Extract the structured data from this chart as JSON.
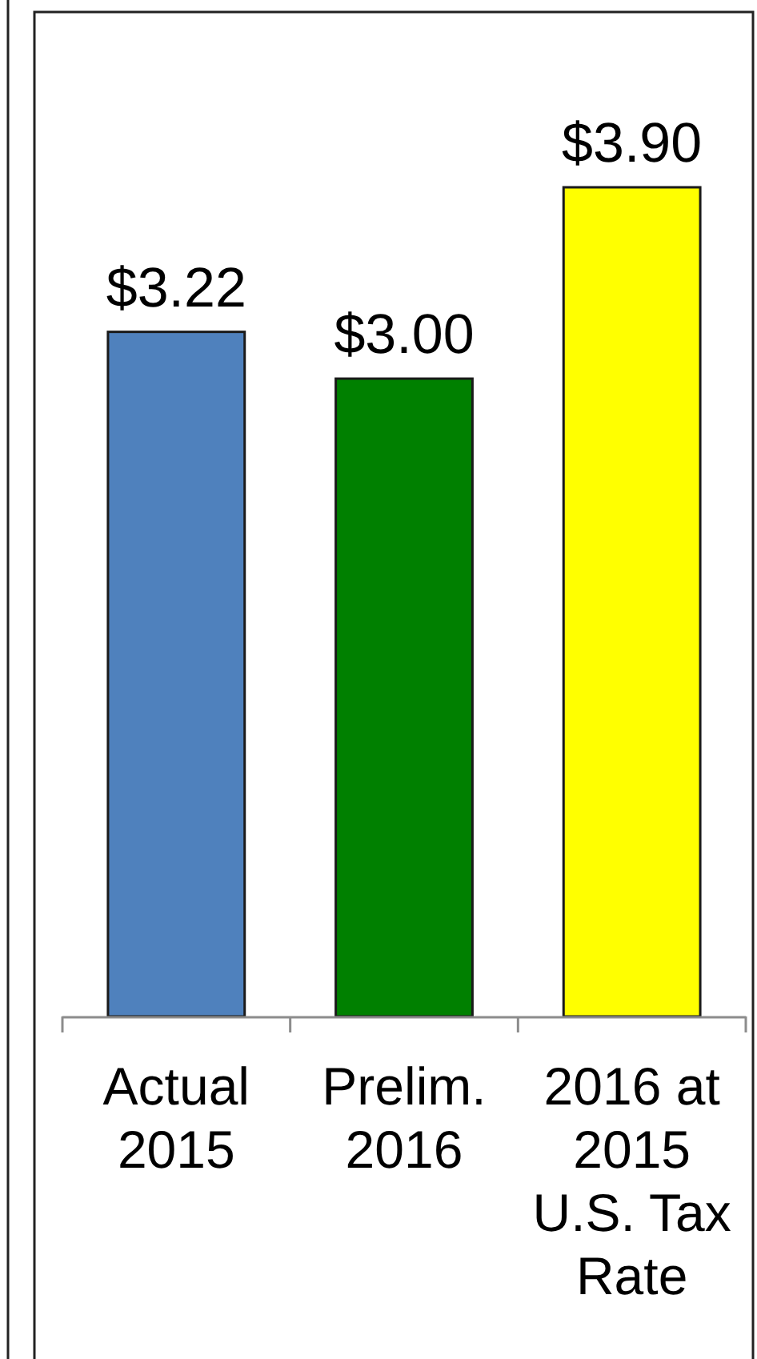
{
  "chart_data": {
    "type": "bar",
    "categories": [
      "Actual 2015",
      "Prelim. 2016",
      "2016 at 2015 U.S. Tax Rate"
    ],
    "values": [
      3.22,
      3.0,
      3.9
    ],
    "colors": [
      "#4f81bd",
      "#008000",
      "#ffff00"
    ],
    "value_labels": [
      "$3.22",
      "$3.00",
      "$3.90"
    ]
  }
}
